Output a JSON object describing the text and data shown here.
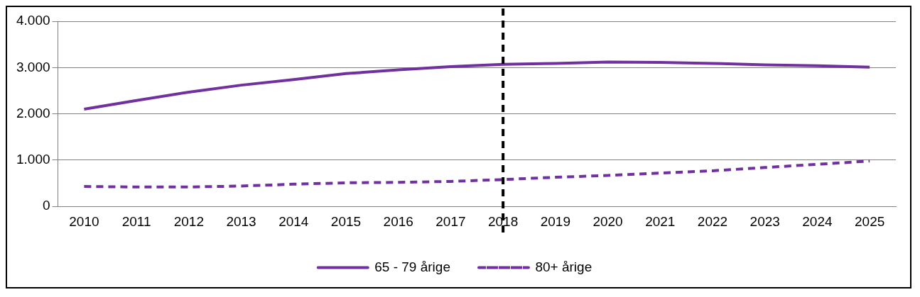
{
  "chart_data": {
    "type": "line",
    "categories": [
      "2010",
      "2011",
      "2012",
      "2013",
      "2014",
      "2015",
      "2016",
      "2017",
      "2018",
      "2019",
      "2020",
      "2021",
      "2022",
      "2023",
      "2024",
      "2025"
    ],
    "series": [
      {
        "name": "65 - 79 årige",
        "color": "#7030a0",
        "line_style": "solid",
        "values": [
          2100,
          2290,
          2470,
          2620,
          2740,
          2870,
          2950,
          3020,
          3070,
          3090,
          3120,
          3110,
          3090,
          3060,
          3040,
          3010
        ]
      },
      {
        "name": "80+ årige",
        "color": "#7030a0",
        "line_style": "dashed",
        "values": [
          430,
          420,
          420,
          440,
          480,
          510,
          520,
          540,
          580,
          630,
          670,
          720,
          770,
          840,
          910,
          980
        ]
      }
    ],
    "ylim": [
      0,
      4000
    ],
    "yticks": [
      0,
      {
        "value": 1000,
        "label": "1.000"
      },
      {
        "value": 2000,
        "label": "2.000"
      },
      {
        "value": 3000,
        "label": "3.000"
      },
      {
        "value": 4000,
        "label": "4.000"
      }
    ],
    "grid": "y",
    "legend": "bottom",
    "marker": "none",
    "ref_lines": [
      {
        "axis": "x",
        "value": "2018",
        "color": "#000000",
        "line_style": "dashed"
      }
    ]
  }
}
